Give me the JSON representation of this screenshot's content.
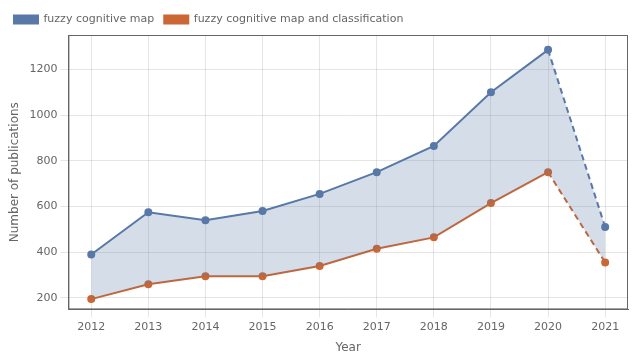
{
  "chart_data": {
    "type": "line",
    "xlabel": "Year",
    "ylabel": "Number of publications",
    "x": [
      2012,
      2013,
      2014,
      2015,
      2016,
      2017,
      2018,
      2019,
      2020,
      2021
    ],
    "series": [
      {
        "name": "fuzzy cognitive map",
        "color": "#5878a8",
        "values": [
          390,
          575,
          540,
          580,
          655,
          750,
          865,
          1100,
          1285,
          510
        ]
      },
      {
        "name": "fuzzy cognitive map and classification",
        "color": "#cc6633",
        "values": [
          195,
          260,
          295,
          295,
          340,
          415,
          465,
          615,
          750,
          355
        ]
      }
    ],
    "xlim": [
      2011.6,
      2021.4
    ],
    "xticks": [
      2012,
      2013,
      2014,
      2015,
      2016,
      2017,
      2018,
      2019,
      2020,
      2021
    ],
    "ylim": [
      150,
      1350
    ],
    "yticks": [
      200,
      400,
      600,
      800,
      1000,
      1200
    ],
    "grid": true,
    "legend": "upper left"
  }
}
